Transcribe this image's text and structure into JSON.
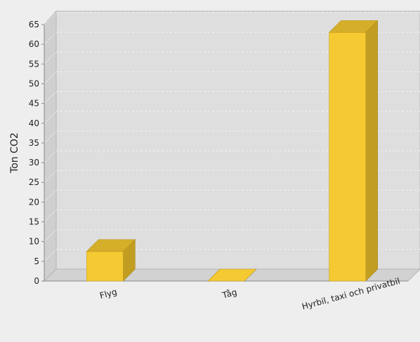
{
  "chart_data": {
    "type": "bar",
    "title": "",
    "xlabel": "",
    "ylabel": "Ton CO2",
    "categories": [
      "Flyg",
      "Tåg",
      "Hyrbil, taxi och privatbil"
    ],
    "values": [
      7.5,
      0,
      63
    ],
    "ylim": [
      0,
      65
    ],
    "yticks": [
      0,
      5,
      10,
      15,
      20,
      25,
      30,
      35,
      40,
      45,
      50,
      55,
      60,
      65
    ],
    "grid": true,
    "legend": "none",
    "bar_color": "#f5c932",
    "bar_side_color": "#c19e22",
    "bar_top_color": "#d5af2a"
  }
}
